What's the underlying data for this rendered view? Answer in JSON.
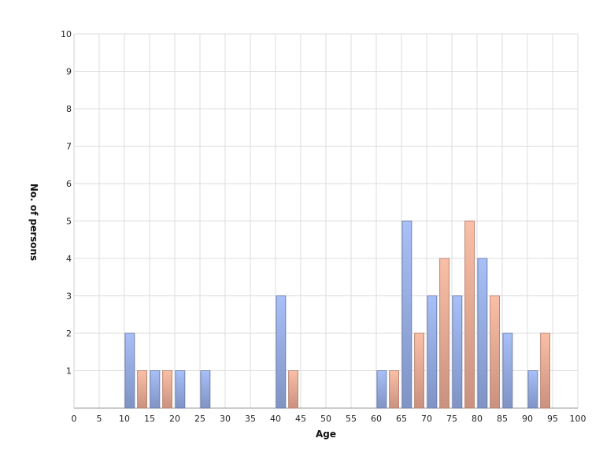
{
  "chart_data": {
    "type": "bar",
    "xlabel": "Age",
    "ylabel": "No. of persons",
    "xlim": [
      0,
      100
    ],
    "ylim": [
      0,
      10
    ],
    "x_ticks": [
      0,
      5,
      10,
      15,
      20,
      25,
      30,
      35,
      40,
      45,
      50,
      55,
      60,
      65,
      70,
      75,
      80,
      85,
      90,
      95,
      100
    ],
    "y_ticks": [
      1,
      2,
      3,
      4,
      5,
      6,
      7,
      8,
      9,
      10
    ],
    "grid": true,
    "series": [
      {
        "color": "#9fb6ee",
        "points": [
          {
            "x": 10,
            "y": 2
          },
          {
            "x": 15,
            "y": 1
          },
          {
            "x": 20,
            "y": 1
          },
          {
            "x": 25,
            "y": 1
          },
          {
            "x": 40,
            "y": 3
          },
          {
            "x": 60,
            "y": 1
          },
          {
            "x": 65,
            "y": 5
          },
          {
            "x": 70,
            "y": 3
          },
          {
            "x": 75,
            "y": 3
          },
          {
            "x": 80,
            "y": 4
          },
          {
            "x": 85,
            "y": 2
          },
          {
            "x": 90,
            "y": 1
          }
        ]
      },
      {
        "color": "#f4b49c",
        "points": [
          {
            "x": 10,
            "y": 1
          },
          {
            "x": 15,
            "y": 1
          },
          {
            "x": 40,
            "y": 1
          },
          {
            "x": 60,
            "y": 1
          },
          {
            "x": 65,
            "y": 2
          },
          {
            "x": 70,
            "y": 4
          },
          {
            "x": 75,
            "y": 5
          },
          {
            "x": 80,
            "y": 3
          },
          {
            "x": 90,
            "y": 2
          }
        ]
      }
    ]
  }
}
